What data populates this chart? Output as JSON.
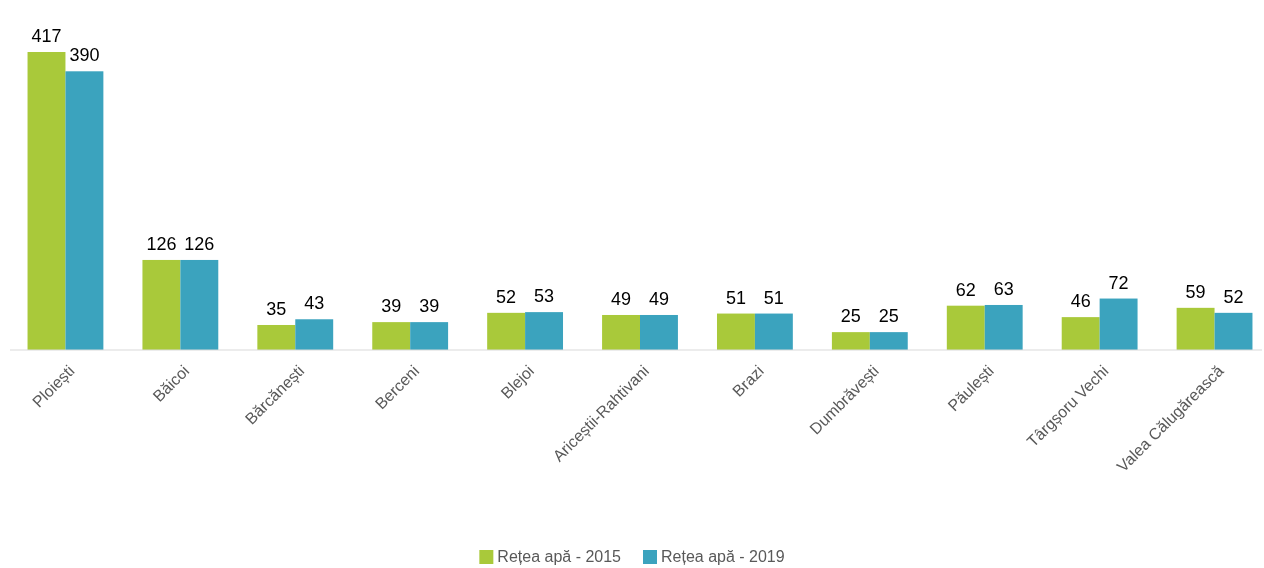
{
  "chart_data": {
    "type": "bar",
    "categories": [
      "Ploiești",
      "Băicoi",
      "Bărcănești",
      "Berceni",
      "Blejoi",
      "Ariceștii-Rahtivani",
      "Brazi",
      "Dumbrăvești",
      "Păulești",
      "Târgșoru Vechi",
      "Valea Călugărească"
    ],
    "series": [
      {
        "name": "Rețea apă - 2015",
        "color": "#a9c93a",
        "values": [
          417,
          126,
          35,
          39,
          52,
          49,
          51,
          25,
          62,
          46,
          59
        ]
      },
      {
        "name": "Rețea apă - 2019",
        "color": "#3ba3be",
        "values": [
          390,
          126,
          43,
          39,
          53,
          49,
          51,
          25,
          63,
          72,
          52
        ]
      }
    ],
    "data_labels": true,
    "legend": "bottom"
  }
}
